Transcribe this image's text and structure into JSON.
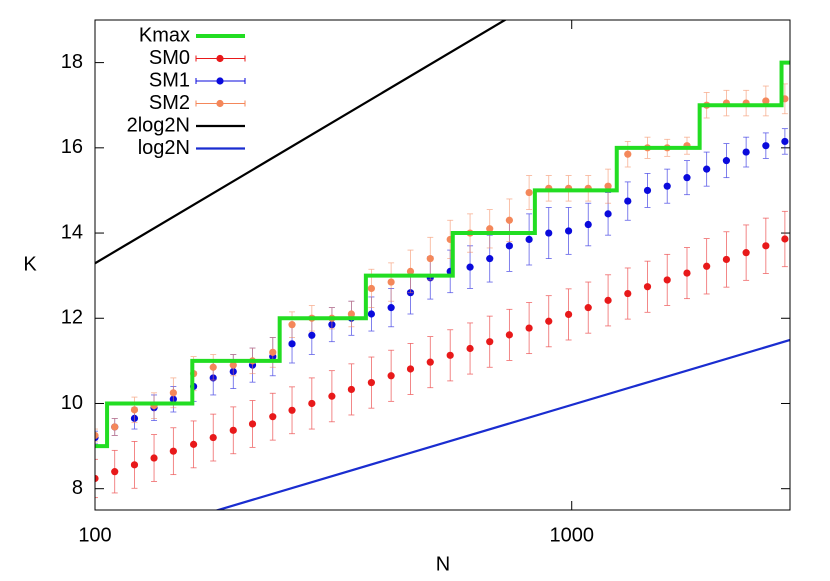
{
  "chart_data": {
    "type": "scatter",
    "xlabel": "N",
    "ylabel": "K",
    "xscale": "log",
    "xlim": [
      100,
      2870
    ],
    "ylim": [
      7.5,
      19
    ],
    "xticks": [
      100,
      1000
    ],
    "yticks": [
      8,
      10,
      12,
      14,
      16,
      18
    ],
    "legend": "top-left",
    "x": [
      100,
      110,
      121,
      133,
      146,
      161,
      177,
      195,
      214,
      236,
      259,
      285,
      314,
      345,
      380,
      418,
      459,
      505,
      556,
      612,
      673,
      740,
      814,
      895,
      985,
      1083,
      1192,
      1311,
      1442,
      1586,
      1745,
      1919,
      2111,
      2322,
      2554,
      2800
    ],
    "series": [
      {
        "name": "Kmax",
        "type": "line",
        "color": "#22dd22",
        "x": [
          100,
          106,
          106,
          160,
          160,
          244,
          244,
          370,
          370,
          563,
          563,
          837,
          837,
          1243,
          1243,
          1855,
          1855,
          2755,
          2755,
          2870
        ],
        "values": [
          9,
          9,
          10,
          10,
          11,
          11,
          12,
          12,
          13,
          13,
          14,
          14,
          15,
          15,
          16,
          16,
          17,
          17,
          18,
          18
        ]
      },
      {
        "name": "SM0",
        "type": "scatter",
        "color": "#e8191a",
        "values": [
          8.24,
          8.4,
          8.56,
          8.72,
          8.88,
          9.04,
          9.2,
          9.37,
          9.52,
          9.69,
          9.84,
          10.0,
          10.17,
          10.33,
          10.49,
          10.65,
          10.81,
          10.97,
          11.13,
          11.29,
          11.45,
          11.61,
          11.77,
          11.93,
          12.09,
          12.25,
          12.42,
          12.58,
          12.74,
          12.9,
          13.06,
          13.22,
          13.38,
          13.54,
          13.7,
          13.86
        ],
        "errors": [
          0.45,
          0.5,
          0.55,
          0.55,
          0.55,
          0.55,
          0.55,
          0.55,
          0.55,
          0.55,
          0.55,
          0.6,
          0.6,
          0.6,
          0.6,
          0.6,
          0.6,
          0.6,
          0.6,
          0.6,
          0.6,
          0.6,
          0.6,
          0.6,
          0.6,
          0.6,
          0.6,
          0.6,
          0.6,
          0.6,
          0.6,
          0.65,
          0.65,
          0.65,
          0.65,
          0.65
        ]
      },
      {
        "name": "SM1",
        "type": "scatter",
        "color": "#0a0adc",
        "values": [
          9.2,
          9.45,
          9.65,
          9.9,
          10.1,
          10.4,
          10.6,
          10.75,
          10.9,
          11.1,
          11.4,
          11.6,
          11.85,
          12.0,
          12.1,
          12.25,
          12.6,
          12.95,
          13.1,
          13.2,
          13.4,
          13.7,
          13.85,
          14.0,
          14.05,
          14.2,
          14.45,
          14.75,
          15.0,
          15.1,
          15.3,
          15.5,
          15.7,
          15.9,
          16.05,
          16.15
        ],
        "errors": [
          0.15,
          0.2,
          0.25,
          0.3,
          0.3,
          0.35,
          0.4,
          0.4,
          0.4,
          0.45,
          0.45,
          0.45,
          0.4,
          0.4,
          0.4,
          0.45,
          0.5,
          0.5,
          0.5,
          0.5,
          0.55,
          0.6,
          0.6,
          0.6,
          0.55,
          0.5,
          0.5,
          0.45,
          0.4,
          0.4,
          0.4,
          0.4,
          0.4,
          0.35,
          0.3,
          0.3
        ]
      },
      {
        "name": "SM2",
        "type": "scatter",
        "color": "#f4875a",
        "values": [
          9.25,
          9.45,
          9.85,
          9.95,
          10.25,
          10.7,
          10.85,
          10.9,
          11.0,
          11.2,
          11.85,
          12.0,
          12.0,
          12.1,
          12.7,
          12.85,
          13.1,
          13.4,
          13.85,
          14.0,
          14.1,
          14.3,
          14.95,
          15.05,
          15.05,
          15.05,
          15.1,
          15.85,
          16.0,
          16.0,
          16.05,
          17.0,
          17.05,
          17.05,
          17.1,
          17.15
        ],
        "errors": [
          0.15,
          0.2,
          0.3,
          0.3,
          0.35,
          0.4,
          0.3,
          0.25,
          0.3,
          0.35,
          0.3,
          0.3,
          0.25,
          0.3,
          0.45,
          0.45,
          0.5,
          0.5,
          0.45,
          0.45,
          0.45,
          0.5,
          0.4,
          0.3,
          0.3,
          0.3,
          0.4,
          0.3,
          0.25,
          0.2,
          0.2,
          0.3,
          0.3,
          0.3,
          0.35,
          0.35
        ]
      },
      {
        "name": "2log2N",
        "type": "line",
        "color": "#000000",
        "x": [
          100,
          2870
        ],
        "values": [
          13.29,
          22.97
        ]
      },
      {
        "name": "log2N",
        "type": "line",
        "color": "#1a2dd0",
        "x": [
          100,
          2870
        ],
        "values": [
          6.64,
          11.49
        ]
      }
    ]
  }
}
